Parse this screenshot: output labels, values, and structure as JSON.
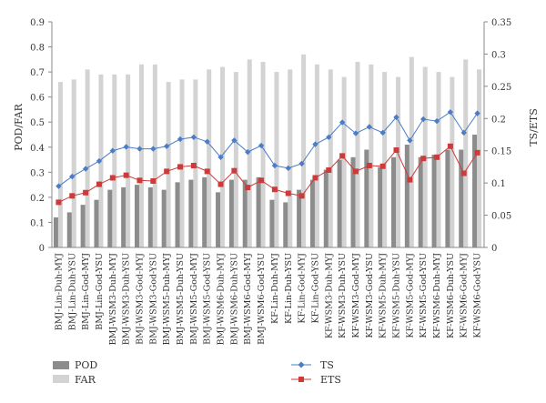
{
  "chart_data": {
    "type": "bar",
    "categories": [
      "BMJ-Lin-Duh-MYJ",
      "BMJ-Lin-Duh-YSU",
      "BMJ-Lin-God-MYJ",
      "BMJ-Lin-God-YSU",
      "BMJ-WSM3-Duh-MYJ",
      "BMJ-WSM3-Duh-YSU",
      "BMJ-WSM3-God-MYJ",
      "BMJ-WSM3-God-YSU",
      "BMJ-WSM5-Duh-MYJ",
      "BMJ-WSM5-Duh-YSU",
      "BMJ-WSM5-God-MYJ",
      "BMJ-WSM5-God-YSU",
      "BMJ-WSM6-Duh-MYJ",
      "BMJ-WSM6-Duh-YSU",
      "BMJ-WSM6-God-MYJ",
      "BMJ-WSM6-God-YSU",
      "KF-Lin-Duh-MYJ",
      "KF-Lin-Duh-YSU",
      "KF-Lin-God-MYJ",
      "KF-Lin-God-YSU",
      "KF-WSM3-Duh-MYJ",
      "KF-WSM3-Duh-YSU",
      "KF-WSM3-God-MYJ",
      "KF-WSM3-God-YSU",
      "KF-WSM5-Duh-MYJ",
      "KF-WSM5-Duh-YSU",
      "KF-WSM5-God-MYJ",
      "KF-WSM5-God-YSU",
      "KF-WSM6-Duh-MYJ",
      "KF-WSM6-Duh-YSU",
      "KF-WSM6-God-MYJ",
      "KF-WSM6-God-YSU"
    ],
    "left_axis": {
      "label": "POD/FAR",
      "ylim": [
        0,
        0.9
      ],
      "ticks": [
        "0",
        "0.1",
        "0.2",
        "0.3",
        "0.4",
        "0.5",
        "0.6",
        "0.7",
        "0.8",
        "0.9"
      ]
    },
    "right_axis": {
      "label": "TS/ETS",
      "ylim": [
        0,
        0.35
      ],
      "ticks": [
        "0",
        "0.05",
        "0.1",
        "0.15",
        "0.2",
        "0.25",
        "0.3",
        "0.35"
      ]
    },
    "series": [
      {
        "name": "POD",
        "type": "bar",
        "axis": "left",
        "color": "#8c8c8c",
        "values": [
          0.12,
          0.14,
          0.17,
          0.19,
          0.23,
          0.24,
          0.25,
          0.24,
          0.23,
          0.26,
          0.27,
          0.28,
          0.22,
          0.27,
          0.27,
          0.28,
          0.19,
          0.18,
          0.23,
          0.27,
          0.31,
          0.35,
          0.36,
          0.39,
          0.32,
          0.36,
          0.41,
          0.36,
          0.37,
          0.39,
          0.39,
          0.45
        ]
      },
      {
        "name": "FAR",
        "type": "bar",
        "axis": "left",
        "color": "#d3d3d3",
        "values": [
          0.66,
          0.67,
          0.71,
          0.69,
          0.69,
          0.69,
          0.73,
          0.73,
          0.66,
          0.67,
          0.67,
          0.71,
          0.72,
          0.7,
          0.75,
          0.74,
          0.7,
          0.71,
          0.77,
          0.73,
          0.71,
          0.68,
          0.74,
          0.73,
          0.7,
          0.68,
          0.76,
          0.72,
          0.7,
          0.68,
          0.75,
          0.71
        ]
      },
      {
        "name": "TS",
        "type": "line",
        "axis": "right",
        "color": "#4a7cc7",
        "values": [
          0.095,
          0.11,
          0.122,
          0.134,
          0.15,
          0.156,
          0.153,
          0.153,
          0.157,
          0.168,
          0.171,
          0.164,
          0.14,
          0.166,
          0.148,
          0.158,
          0.127,
          0.123,
          0.13,
          0.16,
          0.171,
          0.194,
          0.177,
          0.187,
          0.178,
          0.202,
          0.166,
          0.199,
          0.196,
          0.21,
          0.178,
          0.208
        ]
      },
      {
        "name": "ETS",
        "type": "line",
        "axis": "right",
        "color": "#cc3a3a",
        "values": [
          0.07,
          0.08,
          0.085,
          0.098,
          0.108,
          0.112,
          0.104,
          0.103,
          0.118,
          0.125,
          0.127,
          0.118,
          0.098,
          0.119,
          0.093,
          0.104,
          0.09,
          0.084,
          0.08,
          0.108,
          0.12,
          0.142,
          0.118,
          0.127,
          0.126,
          0.151,
          0.105,
          0.138,
          0.14,
          0.157,
          0.115,
          0.147
        ]
      }
    ],
    "grid": false,
    "legend": "bottom"
  }
}
